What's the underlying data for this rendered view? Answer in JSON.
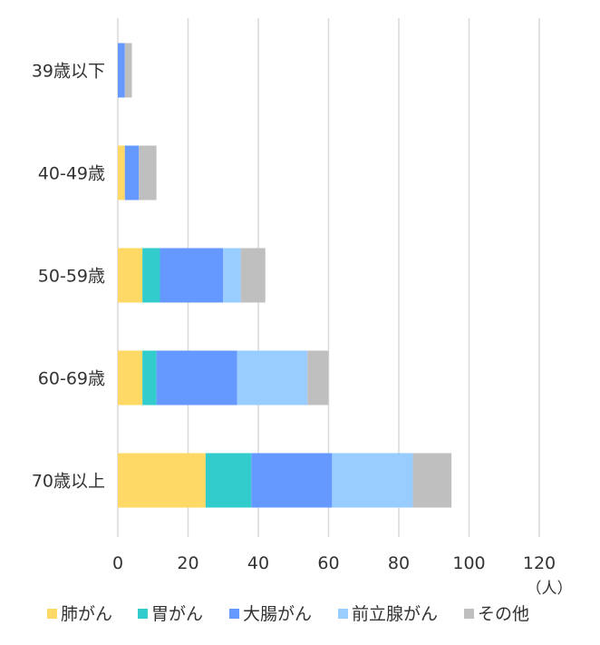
{
  "chart_data": {
    "type": "bar",
    "orientation": "horizontal",
    "stacked": true,
    "categories": [
      "39歳以下",
      "40-49歳",
      "50-59歳",
      "60-69歳",
      "70歳以上"
    ],
    "series": [
      {
        "name": "肺がん",
        "color": "#FFD966",
        "values": [
          0,
          2,
          7,
          7,
          25
        ]
      },
      {
        "name": "胃がん",
        "color": "#33CCCC",
        "values": [
          0,
          0,
          5,
          4,
          13
        ]
      },
      {
        "name": "大腸がん",
        "color": "#6699FF",
        "values": [
          2,
          4,
          18,
          23,
          23
        ]
      },
      {
        "name": "前立腺がん",
        "color": "#99CCFF",
        "values": [
          0,
          0,
          5,
          20,
          23
        ]
      },
      {
        "name": "その他",
        "color": "#BFBFBF",
        "values": [
          2,
          5,
          7,
          6,
          11
        ]
      }
    ],
    "xlim": [
      0,
      120
    ],
    "xticks": [
      "0",
      "20",
      "40",
      "60",
      "80",
      "100",
      "120"
    ],
    "unit": "（人）",
    "grid": true,
    "legend": "bottom"
  }
}
